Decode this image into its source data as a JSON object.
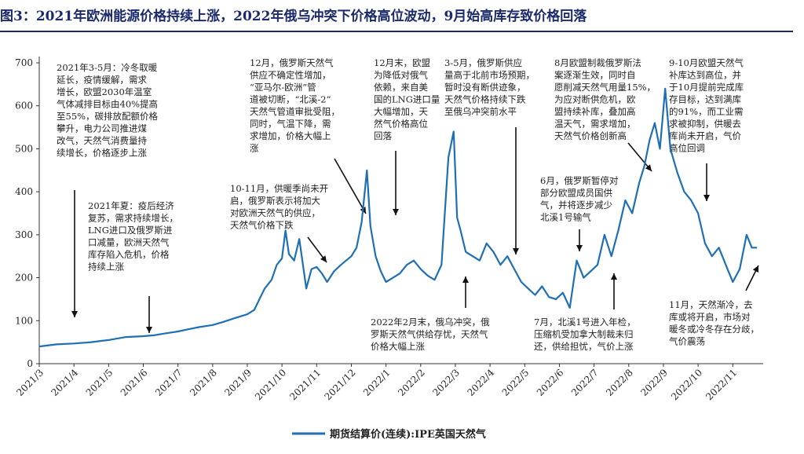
{
  "title": "图3：2021年欧洲能源价格持续上涨，2022年俄乌冲突下价格高位波动，9月始高库存致价格回落",
  "colors": {
    "series": "#1f6fb5",
    "title": "#1b2a6b",
    "arrow": "#111111"
  },
  "chart_data": {
    "type": "line",
    "title": "",
    "xlabel": "",
    "ylabel": "",
    "ylim": [
      0,
      700
    ],
    "yticks": [
      0,
      100,
      200,
      300,
      400,
      500,
      600,
      700
    ],
    "grid": false,
    "legend_position": "bottom-center",
    "xticks": [
      "2021/3",
      "2021/4",
      "2021/5",
      "2021/6",
      "2021/7",
      "2021/8",
      "2021/9",
      "2021/10",
      "2021/11",
      "2021/12",
      "2022/1",
      "2022/2",
      "2022/3",
      "2022/4",
      "2022/5",
      "2022/6",
      "2022/7",
      "2022/8",
      "2022/9",
      "2022/10",
      "2022/11"
    ],
    "series": [
      {
        "name": "期货结算价(连续):IPE英国天然气",
        "x": [
          0,
          0.5,
          1,
          1.5,
          2,
          2.5,
          3,
          3.3,
          3.6,
          4,
          4.3,
          4.6,
          5,
          5.3,
          5.6,
          6,
          6.2,
          6.35,
          6.5,
          6.7,
          6.85,
          7,
          7.1,
          7.2,
          7.35,
          7.5,
          7.7,
          7.85,
          8,
          8.15,
          8.3,
          8.5,
          8.7,
          8.85,
          9,
          9.15,
          9.3,
          9.45,
          9.55,
          9.7,
          9.85,
          10,
          10.2,
          10.4,
          10.6,
          10.8,
          11,
          11.2,
          11.4,
          11.6,
          11.8,
          11.95,
          12.05,
          12.15,
          12.3,
          12.5,
          12.7,
          12.9,
          13.1,
          13.3,
          13.5,
          13.7,
          13.9,
          14.1,
          14.3,
          14.5,
          14.7,
          14.9,
          15.1,
          15.3,
          15.5,
          15.7,
          15.9,
          16.1,
          16.3,
          16.5,
          16.7,
          16.9,
          17.1,
          17.3,
          17.45,
          17.6,
          17.75,
          17.9,
          18.05,
          18.2,
          18.4,
          18.6,
          18.8,
          19,
          19.2,
          19.4,
          19.6,
          19.8,
          20,
          20.2,
          20.4,
          20.55,
          20.7
        ],
        "values": [
          40,
          45,
          47,
          50,
          55,
          62,
          64,
          66,
          70,
          75,
          80,
          85,
          90,
          97,
          105,
          115,
          125,
          150,
          175,
          195,
          230,
          245,
          310,
          255,
          240,
          290,
          175,
          220,
          225,
          210,
          190,
          215,
          230,
          240,
          250,
          270,
          330,
          450,
          320,
          250,
          215,
          190,
          200,
          210,
          230,
          240,
          220,
          205,
          195,
          230,
          480,
          540,
          340,
          310,
          260,
          250,
          240,
          280,
          260,
          230,
          250,
          220,
          190,
          175,
          160,
          180,
          155,
          150,
          165,
          130,
          240,
          200,
          215,
          230,
          300,
          250,
          310,
          380,
          350,
          420,
          460,
          520,
          560,
          500,
          640,
          500,
          445,
          400,
          380,
          350,
          280,
          250,
          270,
          230,
          190,
          220,
          300,
          270,
          270
        ]
      }
    ]
  },
  "annotations": [
    {
      "lines": [
        "2021年3-5月：冷冬取暖",
        "延长，疫情缓解，需求",
        "增长，欧盟2030年温室",
        "气体减排目标由40%提高",
        "至55%，碳排放配额价格",
        "攀升，电力公司推进煤",
        "改气，天然气消费量持",
        "续增长，价格逐步上涨"
      ]
    },
    {
      "lines": [
        "2021年夏：疫后经济",
        "复苏，需求持续增长，",
        "LNG进口及俄罗斯进",
        "口减量，欧洲天然气",
        "库存陷入危机，价格",
        "持续上涨"
      ]
    },
    {
      "lines": [
        "12月，俄罗斯天然气",
        "供应不确定性增加，",
        "“亚马尔-欧洲”管",
        "道被切断，“北溪-2”",
        "天然气管道审批受阻，",
        "同时，气温下降，需",
        "求增加，价格大幅上",
        "涨"
      ]
    },
    {
      "lines": [
        "10-11月，供暖季尚未开",
        "启，俄罗斯表示将加大",
        "对欧洲天然气的供应，",
        "天然气价格下跌"
      ]
    },
    {
      "lines": [
        "12月末，欧盟",
        "为降低对俄气",
        "依赖，来自美",
        "国的LNG进口量",
        "大幅增加，天",
        "然气价格高位",
        "回落"
      ]
    },
    {
      "lines": [
        "3-5月，俄罗斯供应",
        "量高于北前市场预期，",
        "暂时没有断供迹象，",
        "天然气价格持续下跌",
        "至俄乌冲突前水平"
      ]
    },
    {
      "lines": [
        "2022年2月末，俄乌冲突，俄",
        "罗斯天然气供给存忧，天然气",
        "价格大幅上涨"
      ]
    },
    {
      "lines": [
        "8月欧盟制裁俄罗斯法",
        "案逐渐生效，同时自",
        "愿削减天然气用量15%，",
        "为应对断供危机，欧",
        "盟持续补库，叠加高",
        "温天气，需求增加，",
        "天然气价格创新高"
      ]
    },
    {
      "lines": [
        "6月，俄罗斯暂停对",
        "部分欧盟成员国供",
        "气，并将逐步减少",
        "北溪1号输气"
      ]
    },
    {
      "lines": [
        "7月，北溪1号进入年检，",
        "压缩机受加拿大制裁未归",
        "还，供给担忧，气价上涨"
      ]
    },
    {
      "lines": [
        "9-10月欧盟天然气",
        "补库达到高位，并",
        "于10月提前完成库",
        "存目标，达到满库",
        "的91%，而工业需",
        "求被抑制，供暖去",
        "库尚未开启，气价",
        "高位回调"
      ]
    },
    {
      "lines": [
        "11月，天然渐冷，去",
        "库或将开启，市场对",
        "暖冬或冷冬存在分歧，",
        "气价震荡"
      ]
    }
  ]
}
